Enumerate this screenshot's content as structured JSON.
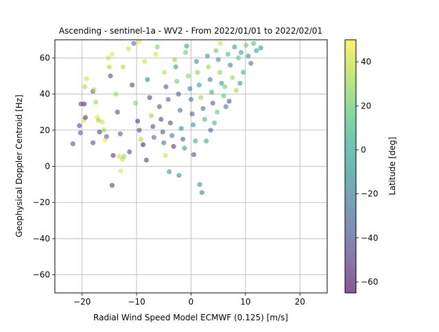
{
  "chart_data": {
    "type": "scatter",
    "title": "Ascending - sentinel-1a - WV2 - From 2022/01/01 to 2022/02/01",
    "xlabel": "Radial Wind Speed Model ECMWF (0.125) [m/s]",
    "ylabel": "Geophysical Doppler Centroid [Hz]",
    "xlim": [
      -25,
      25
    ],
    "ylim": [
      -70,
      70
    ],
    "xticks": [
      -20,
      -10,
      0,
      10,
      20
    ],
    "yticks": [
      -60,
      -40,
      -20,
      0,
      20,
      40,
      60
    ],
    "xtick_labels": [
      "−20",
      "−10",
      "0",
      "10",
      "20"
    ],
    "ytick_labels": [
      "−60",
      "−40",
      "−20",
      "0",
      "20",
      "40",
      "60"
    ],
    "grid": true,
    "point_alpha": 0.55,
    "colorbar": {
      "label": "Latitude [deg]",
      "range": [
        -65,
        50
      ],
      "ticks": [
        -60,
        -40,
        -20,
        0,
        20,
        40
      ],
      "tick_labels": [
        "−60",
        "−40",
        "−20",
        "0",
        "20",
        "40"
      ],
      "colormap": "viridis"
    },
    "points": [
      [
        -21.7,
        12.5,
        -45
      ],
      [
        -20.2,
        34.5,
        -50
      ],
      [
        -19.6,
        34.5,
        -55
      ],
      [
        -20.3,
        18.5,
        -40
      ],
      [
        -20.5,
        22.5,
        -50
      ],
      [
        -19.7,
        25.5,
        40
      ],
      [
        -19.4,
        27.0,
        -55
      ],
      [
        -19.5,
        44.0,
        35
      ],
      [
        -19.2,
        48.5,
        42
      ],
      [
        -18.0,
        41.5,
        -40
      ],
      [
        -17.8,
        42.5,
        40
      ],
      [
        -18.0,
        13.0,
        -45
      ],
      [
        -17.5,
        35.5,
        30
      ],
      [
        -17.2,
        27.0,
        45
      ],
      [
        -17.0,
        25.5,
        30
      ],
      [
        -16.8,
        19.0,
        -50
      ],
      [
        -16.3,
        24.5,
        40
      ],
      [
        -16.0,
        20.0,
        30
      ],
      [
        -15.8,
        14.5,
        45
      ],
      [
        -15.5,
        16.5,
        -40
      ],
      [
        -15.2,
        60.0,
        40
      ],
      [
        -15.0,
        55.0,
        35
      ],
      [
        -14.8,
        50.0,
        -45
      ],
      [
        -14.5,
        62.0,
        45
      ],
      [
        -14.3,
        6.0,
        -55
      ],
      [
        -14.5,
        -10.5,
        -50
      ],
      [
        -13.2,
        5.5,
        40
      ],
      [
        -12.9,
        -2.5,
        45
      ],
      [
        -12.6,
        4.0,
        40
      ],
      [
        -12.3,
        5.5,
        30
      ],
      [
        -11.3,
        8.0,
        -45
      ],
      [
        -13.0,
        18.0,
        -40
      ],
      [
        -13.5,
        30.0,
        -45
      ],
      [
        -13.8,
        40.0,
        30
      ],
      [
        -12.5,
        55.0,
        35
      ],
      [
        -11.5,
        65.0,
        40
      ],
      [
        -10.5,
        68.0,
        -30
      ],
      [
        -9.5,
        69.0,
        45
      ],
      [
        -10.8,
        45.0,
        -50
      ],
      [
        -10.2,
        35.0,
        25
      ],
      [
        -9.8,
        25.0,
        -55
      ],
      [
        -9.5,
        20.0,
        -45
      ],
      [
        -9.2,
        15.0,
        35
      ],
      [
        -8.8,
        12.0,
        -60
      ],
      [
        -8.5,
        58.0,
        40
      ],
      [
        -8.0,
        48.0,
        -20
      ],
      [
        -7.6,
        38.0,
        -50
      ],
      [
        -7.3,
        28.0,
        30
      ],
      [
        -7.0,
        22.0,
        -45
      ],
      [
        -6.8,
        16.0,
        -35
      ],
      [
        -6.5,
        62.0,
        40
      ],
      [
        -6.2,
        66.0,
        25
      ],
      [
        -8.2,
        3.5,
        -55
      ],
      [
        -5.8,
        33.0,
        -45
      ],
      [
        -5.5,
        26.0,
        -50
      ],
      [
        -5.2,
        19.0,
        -40
      ],
      [
        -5.0,
        13.0,
        -30
      ],
      [
        -4.7,
        6.0,
        40
      ],
      [
        -4.9,
        52.0,
        35
      ],
      [
        -4.6,
        44.0,
        -40
      ],
      [
        -4.2,
        37.0,
        -35
      ],
      [
        -4.0,
        -3.0,
        -10
      ],
      [
        -3.8,
        24.0,
        -45
      ],
      [
        -3.5,
        17.0,
        -25
      ],
      [
        -3.2,
        11.0,
        -55
      ],
      [
        -3.0,
        59.0,
        30
      ],
      [
        -2.8,
        55.0,
        -10
      ],
      [
        -2.6,
        47.0,
        20
      ],
      [
        -2.3,
        40.0,
        -40
      ],
      [
        -2.0,
        31.0,
        -30
      ],
      [
        -2.2,
        -5.0,
        -20
      ],
      [
        -1.8,
        21.0,
        -15
      ],
      [
        -1.5,
        15.0,
        -35
      ],
      [
        -1.2,
        10.0,
        -5
      ],
      [
        -1.0,
        63.0,
        20
      ],
      [
        -0.8,
        66.5,
        -5
      ],
      [
        -0.5,
        50.0,
        25
      ],
      [
        -0.2,
        43.0,
        -20
      ],
      [
        0.0,
        37.0,
        -30
      ],
      [
        0.2,
        29.0,
        -40
      ],
      [
        0.4,
        23.0,
        -10
      ],
      [
        0.5,
        6.5,
        -45
      ],
      [
        0.8,
        14.0,
        5
      ],
      [
        1.0,
        58.0,
        -15
      ],
      [
        1.2,
        52.0,
        25
      ],
      [
        1.5,
        45.0,
        -5
      ],
      [
        1.8,
        38.0,
        30
      ],
      [
        1.6,
        -10.0,
        -15
      ],
      [
        2.0,
        -14.5,
        -20
      ],
      [
        2.2,
        32.0,
        -30
      ],
      [
        2.5,
        26.0,
        10
      ],
      [
        2.8,
        14.0,
        0
      ],
      [
        3.0,
        61.0,
        -10
      ],
      [
        3.2,
        55.0,
        30
      ],
      [
        3.5,
        48.0,
        -25
      ],
      [
        3.8,
        41.0,
        5
      ],
      [
        4.0,
        35.0,
        -40
      ],
      [
        4.3,
        24.0,
        10
      ],
      [
        4.6,
        64.0,
        20
      ],
      [
        5.0,
        59.0,
        -15
      ],
      [
        5.3,
        52.0,
        25
      ],
      [
        5.6,
        46.0,
        -5
      ],
      [
        6.0,
        39.0,
        15
      ],
      [
        6.4,
        33.0,
        -30
      ],
      [
        6.8,
        62.0,
        10
      ],
      [
        7.2,
        56.0,
        -20
      ],
      [
        7.6,
        49.0,
        30
      ],
      [
        8.0,
        66.0,
        -10
      ],
      [
        8.3,
        42.0,
        30
      ],
      [
        8.7,
        60.0,
        15
      ],
      [
        9.2,
        63.0,
        -5
      ],
      [
        9.6,
        52.0,
        5
      ],
      [
        10.1,
        67.0,
        20
      ],
      [
        10.5,
        61.0,
        -15
      ],
      [
        11.0,
        57.0,
        -25
      ],
      [
        11.5,
        68.0,
        10
      ],
      [
        12.0,
        64.0,
        -5
      ],
      [
        12.8,
        65.5,
        -15
      ],
      [
        6.2,
        44.0,
        20
      ],
      [
        7.0,
        36.0,
        -40
      ],
      [
        3.6,
        20.0,
        -35
      ],
      [
        5.4,
        68.0,
        40
      ],
      [
        4.8,
        30.0,
        20
      ],
      [
        9.0,
        46.0,
        -10
      ]
    ]
  }
}
